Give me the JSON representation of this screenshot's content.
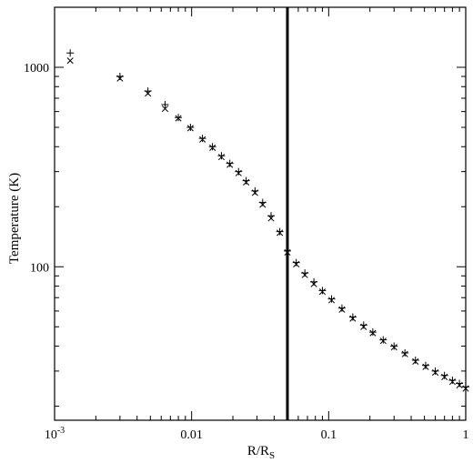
{
  "chart_data": {
    "type": "scatter",
    "title": "",
    "xlabel": "R/R",
    "xlabel_sub": "S",
    "ylabel": "Temperature (K)",
    "xscale": "log",
    "yscale": "log",
    "xlim": [
      0.001,
      1
    ],
    "ylim": [
      17,
      2000
    ],
    "grid": false,
    "legend": "none",
    "x_ticks": [
      {
        "value": 0.001,
        "label": "10",
        "sup": "-3"
      },
      {
        "value": 0.01,
        "label": "0.01",
        "sup": ""
      },
      {
        "value": 0.1,
        "label": "0.1",
        "sup": ""
      },
      {
        "value": 1,
        "label": "1",
        "sup": ""
      }
    ],
    "y_ticks": [
      {
        "value": 100,
        "label": "100"
      },
      {
        "value": 1000,
        "label": "1000"
      }
    ],
    "vline_x": 0.05,
    "series": [
      {
        "marker": "plus",
        "x": [
          0.0013,
          0.003,
          0.0048,
          0.0064,
          0.008,
          0.0098,
          0.012,
          0.0142,
          0.0165,
          0.019,
          0.022,
          0.025,
          0.029,
          0.033,
          0.038,
          0.044,
          0.05,
          0.058,
          0.067,
          0.078,
          0.09,
          0.105,
          0.125,
          0.15,
          0.18,
          0.21,
          0.25,
          0.3,
          0.36,
          0.43,
          0.51,
          0.6,
          0.7,
          0.8,
          0.9,
          1.0
        ],
        "y": [
          1180,
          900,
          760,
          650,
          560,
          500,
          440,
          400,
          360,
          330,
          300,
          270,
          240,
          210,
          180,
          150,
          120,
          105,
          93,
          84,
          76,
          69,
          62,
          56,
          51,
          47,
          43,
          40,
          37,
          34,
          32,
          30,
          28.5,
          27,
          26,
          25
        ]
      },
      {
        "marker": "cross",
        "x": [
          0.0013,
          0.003,
          0.0048,
          0.0064,
          0.008,
          0.0098,
          0.012,
          0.0142,
          0.0165,
          0.019,
          0.022,
          0.025,
          0.029,
          0.033,
          0.038,
          0.044,
          0.05,
          0.058,
          0.067,
          0.078,
          0.09,
          0.105,
          0.125,
          0.15,
          0.18,
          0.21,
          0.25,
          0.3,
          0.36,
          0.43,
          0.51,
          0.6,
          0.7,
          0.8,
          0.9,
          1.0
        ],
        "y": [
          1080,
          880,
          740,
          620,
          555,
          495,
          435,
          395,
          355,
          325,
          295,
          265,
          235,
          205,
          175,
          148,
          118,
          103,
          91,
          82,
          75,
          68,
          61,
          55,
          50,
          46.5,
          42.5,
          39.5,
          36.5,
          33.5,
          31.5,
          29.5,
          28,
          26.5,
          25.5,
          24.5
        ]
      }
    ]
  }
}
